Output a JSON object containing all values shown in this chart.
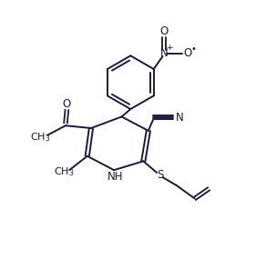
{
  "bg_color": "#ffffff",
  "line_color": "#1a1a3a",
  "figsize": [
    2.81,
    2.96
  ],
  "dpi": 100,
  "line_width": 1.4,
  "font_size": 8.5,
  "label_color": "#1a1a3a",
  "xlim": [
    0,
    10
  ],
  "ylim": [
    0,
    10.5
  ]
}
